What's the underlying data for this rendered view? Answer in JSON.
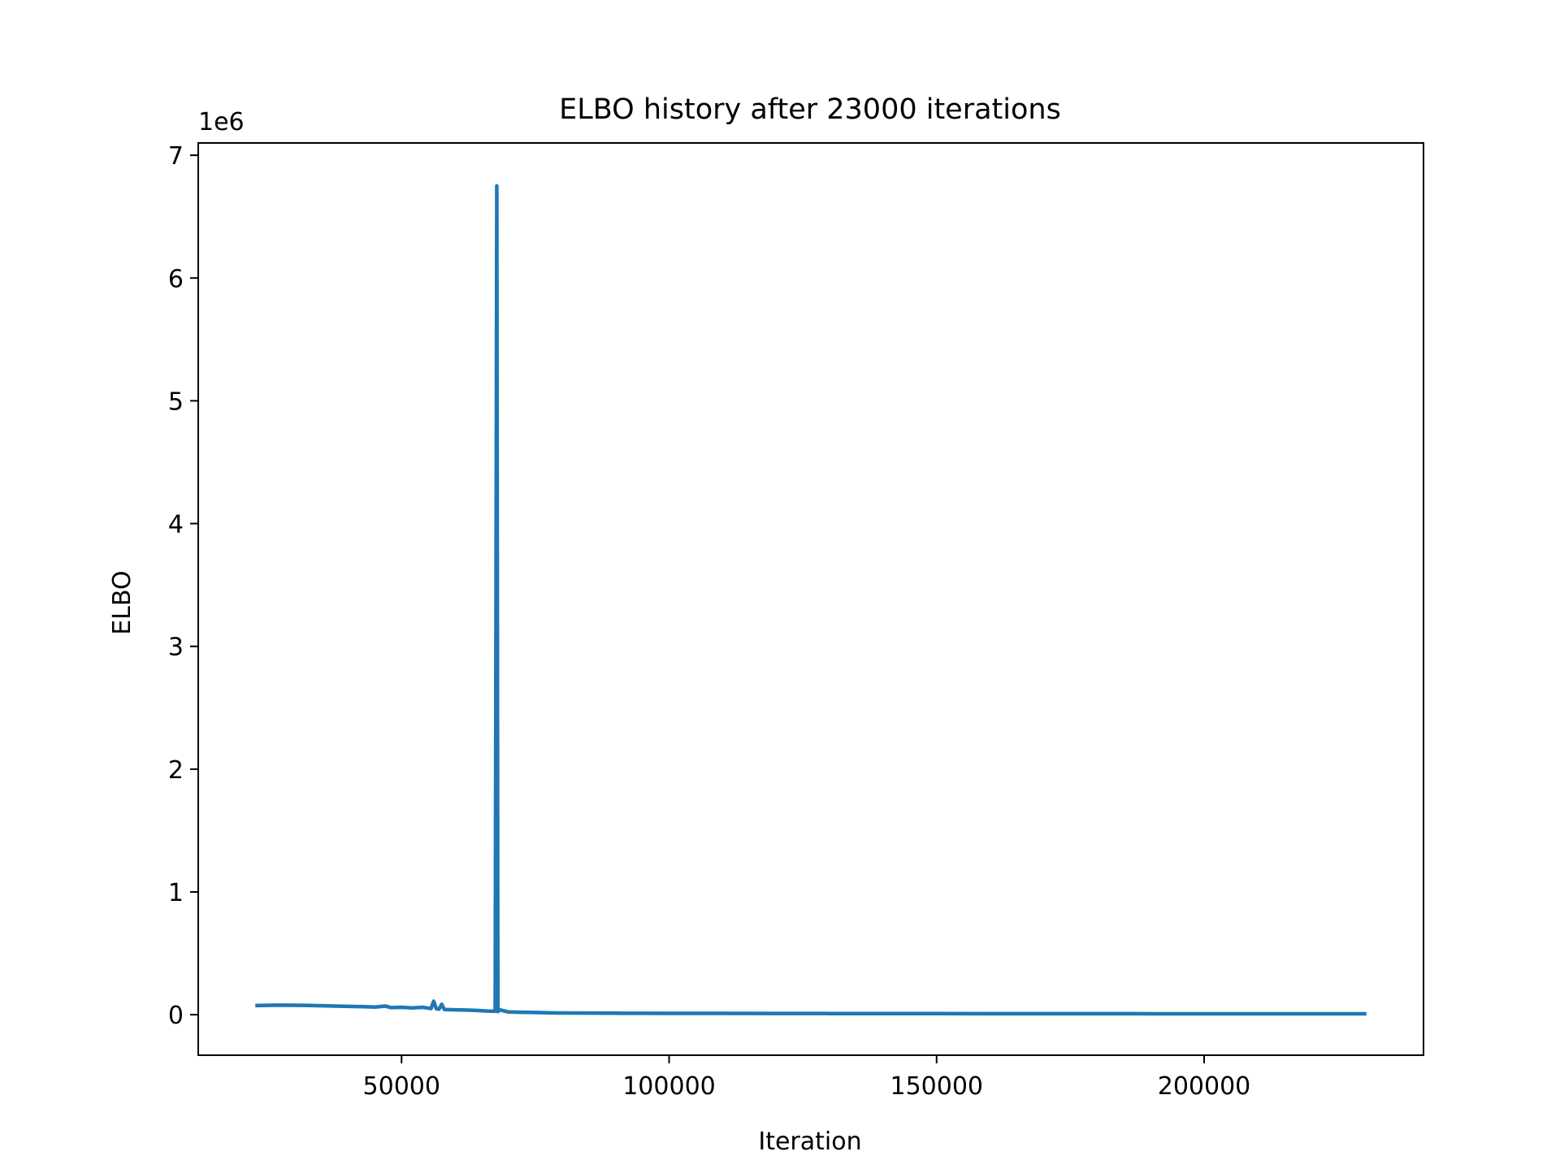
{
  "chart_data": {
    "type": "line",
    "title": "ELBO history after 23000 iterations",
    "xlabel": "Iteration",
    "ylabel": "ELBO",
    "y_offset_label": "1e6",
    "xlim": [
      12000,
      241000
    ],
    "ylim": [
      -330000,
      7100000
    ],
    "y_scale_factor": 1000000,
    "x_ticks": [
      50000,
      100000,
      150000,
      200000
    ],
    "x_tick_labels": [
      "50000",
      "100000",
      "150000",
      "200000"
    ],
    "y_ticks": [
      0,
      1000000,
      2000000,
      3000000,
      4000000,
      5000000,
      6000000,
      7000000
    ],
    "y_tick_labels": [
      "0",
      "1",
      "2",
      "3",
      "4",
      "5",
      "6",
      "7"
    ],
    "grid": false,
    "series": [
      {
        "color": "#1f77b4",
        "x": [
          23000,
          27000,
          32000,
          36000,
          40000,
          43000,
          45000,
          47000,
          48000,
          50000,
          52000,
          54000,
          55500,
          56000,
          56500,
          57000,
          57500,
          58000,
          60000,
          62000,
          64000,
          66000,
          67500,
          67800,
          68000,
          68300,
          70000,
          72000,
          75000,
          78000,
          80000,
          85000,
          90000,
          95000,
          100000,
          110000,
          120000,
          130000,
          140000,
          150000,
          160000,
          170000,
          180000,
          190000,
          200000,
          210000,
          220000,
          230000
        ],
        "y": [
          75000,
          78000,
          76000,
          72000,
          68000,
          65000,
          62000,
          70000,
          58000,
          60000,
          55000,
          60000,
          50000,
          110000,
          48000,
          45000,
          85000,
          42000,
          40000,
          38000,
          35000,
          30000,
          28000,
          6750000,
          25000,
          40000,
          22000,
          20000,
          18000,
          15000,
          14000,
          13000,
          12000,
          11500,
          11000,
          10500,
          10000,
          9500,
          9000,
          8800,
          8500,
          8200,
          8000,
          7800,
          7500,
          7300,
          7100,
          7000
        ]
      }
    ]
  }
}
